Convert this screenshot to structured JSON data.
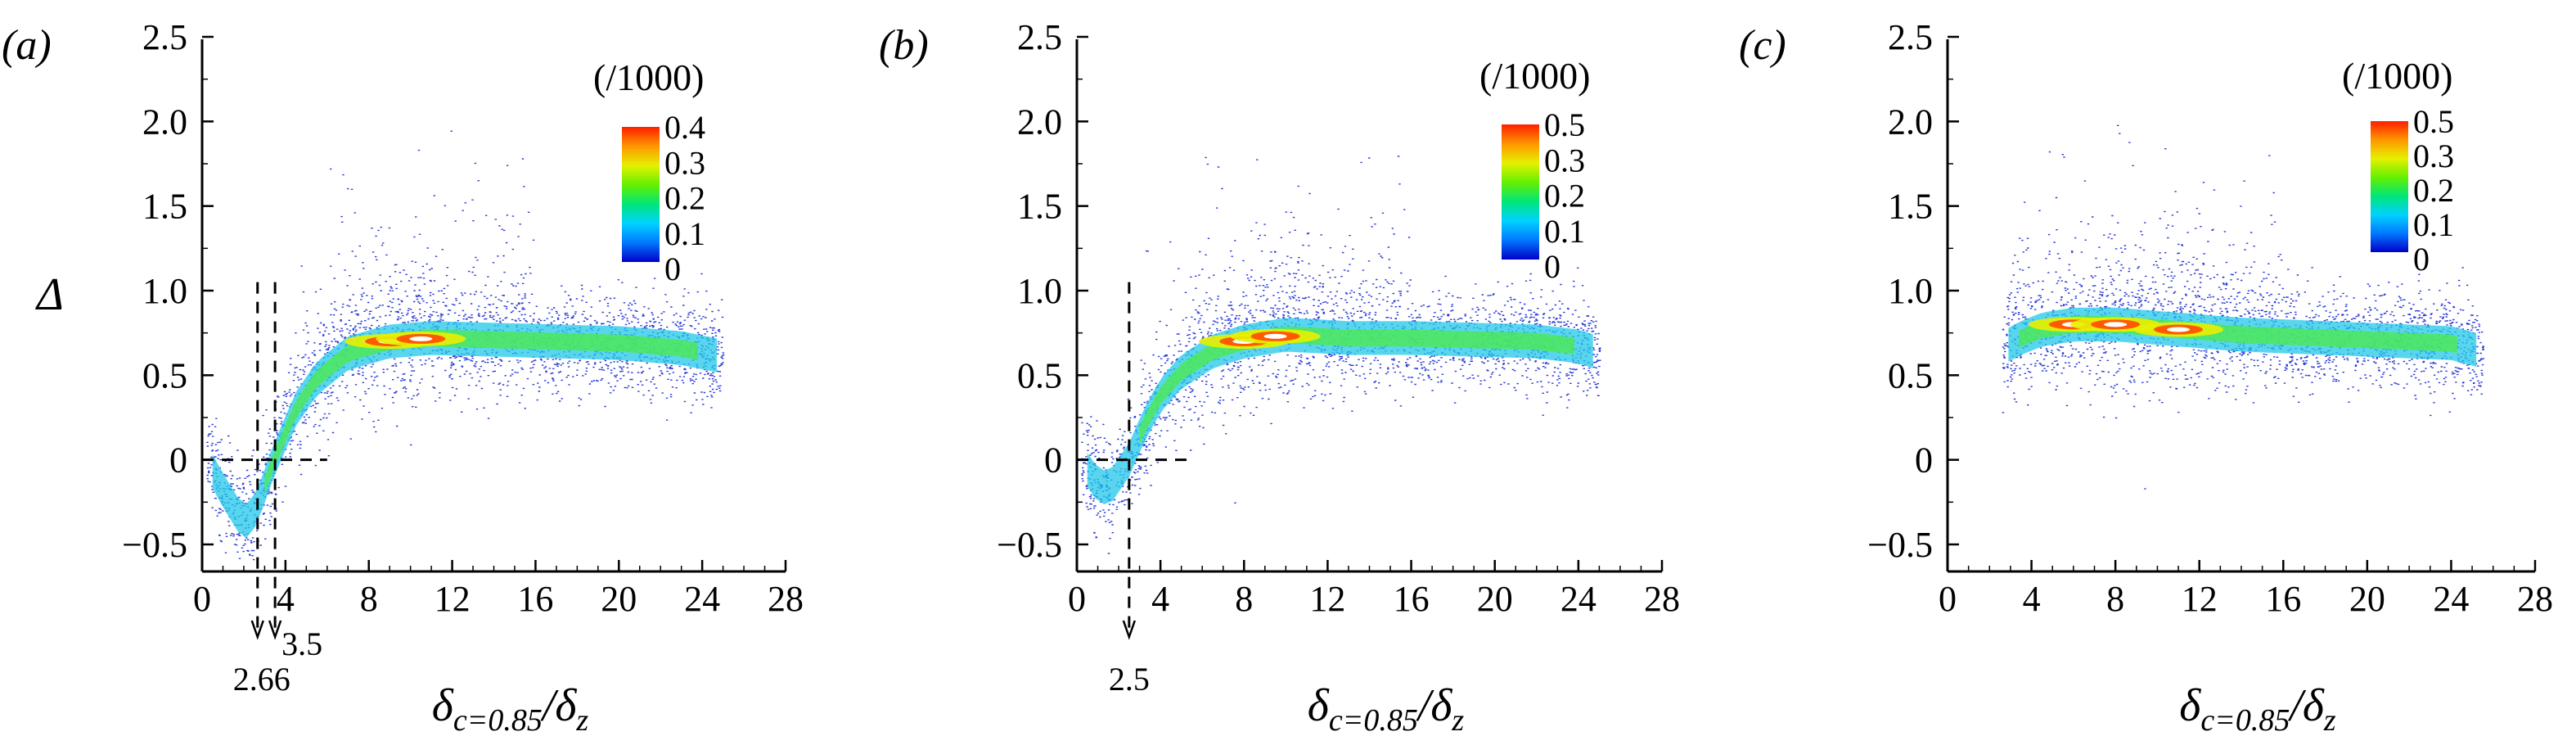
{
  "chart_data": [
    {
      "type": "heatmap",
      "panel_label": "(a)",
      "xlabel": "δc=0.85/δz",
      "xlabel_main": "δ",
      "xlabel_sub": "c=0.85",
      "xlabel_tail": "/δ",
      "xlabel_sub2": "z",
      "ylabel": "Δ",
      "xlim": [
        0,
        28
      ],
      "ylim": [
        -0.6,
        2.5
      ],
      "x_ticks": [
        0,
        4,
        8,
        12,
        16,
        20,
        24,
        28
      ],
      "x_tick_labels": [
        "0",
        "4",
        "8",
        "12",
        "16",
        "20",
        "24",
        "28"
      ],
      "y_ticks": [
        -0.5,
        0,
        0.5,
        1.0,
        1.5,
        2.0,
        2.5
      ],
      "y_tick_labels": [
        "−0.5",
        "0",
        "0.5",
        "1.0",
        "1.5",
        "2.0",
        "2.5"
      ],
      "colorbar_title": "(/1000)",
      "colorbar_ticks": [
        "0.4",
        "0.3",
        "0.2",
        "0.1",
        "0"
      ],
      "colorbar_max": 0.4,
      "ridge": {
        "x": [
          0.2,
          1,
          2,
          2.66,
          3.2,
          3.8,
          4.5,
          5.5,
          7,
          9,
          11,
          14,
          17,
          20,
          23,
          25
        ],
        "y": [
          0,
          -0.18,
          -0.38,
          -0.28,
          -0.08,
          0.1,
          0.3,
          0.48,
          0.63,
          0.7,
          0.72,
          0.71,
          0.7,
          0.69,
          0.66,
          0.61
        ]
      },
      "hot_spots": [
        9,
        10.5
      ],
      "vlines": [
        2.66,
        3.5
      ],
      "vline_labels": [
        "2.66",
        "3.5"
      ],
      "hline_y": 0,
      "hline_x_end": 6,
      "vline_y_top": 1.05
    },
    {
      "type": "heatmap",
      "panel_label": "(b)",
      "xlabel": "δc=0.85/δz",
      "xlabel_main": "δ",
      "xlabel_sub": "c=0.85",
      "xlabel_tail": "/δ",
      "xlabel_sub2": "z",
      "xlim": [
        0,
        28
      ],
      "ylim": [
        -0.6,
        2.5
      ],
      "x_ticks": [
        0,
        4,
        8,
        12,
        16,
        20,
        24,
        28
      ],
      "x_tick_labels": [
        "0",
        "4",
        "8",
        "12",
        "16",
        "20",
        "24",
        "28"
      ],
      "y_ticks": [
        -0.5,
        0,
        0.5,
        1.0,
        1.5,
        2.0,
        2.5
      ],
      "y_tick_labels": [
        "−0.5",
        "0",
        "0.5",
        "1.0",
        "1.5",
        "2.0",
        "2.5"
      ],
      "colorbar_title": "(/1000)",
      "colorbar_ticks": [
        "0.5",
        "0.3",
        "0.2",
        "0.1",
        "0"
      ],
      "colorbar_max": 0.5,
      "ridge": {
        "x": [
          0.2,
          0.8,
          1.5,
          2.5,
          3.2,
          4,
          5,
          6.5,
          8,
          10,
          13,
          16,
          19,
          22,
          24,
          25
        ],
        "y": [
          0,
          -0.12,
          -0.18,
          0,
          0.2,
          0.38,
          0.52,
          0.64,
          0.7,
          0.74,
          0.72,
          0.72,
          0.71,
          0.7,
          0.67,
          0.63
        ]
      },
      "hot_spots": [
        8,
        9.5
      ],
      "vlines": [
        2.5
      ],
      "vline_labels": [
        "2.5"
      ],
      "hline_y": 0,
      "hline_x_end": 5.5,
      "vline_y_top": 1.05
    },
    {
      "type": "heatmap",
      "panel_label": "(c)",
      "xlabel": "δc=0.85/δz",
      "xlabel_main": "δ",
      "xlabel_sub": "c=0.85",
      "xlabel_tail": "/δ",
      "xlabel_sub2": "z",
      "xlim": [
        0,
        28
      ],
      "ylim": [
        -0.6,
        2.5
      ],
      "x_ticks": [
        0,
        4,
        8,
        12,
        16,
        20,
        24,
        28
      ],
      "x_tick_labels": [
        "0",
        "4",
        "8",
        "12",
        "16",
        "20",
        "24",
        "28"
      ],
      "y_ticks": [
        -0.5,
        0,
        0.5,
        1.0,
        1.5,
        2.0,
        2.5
      ],
      "y_tick_labels": [
        "−0.5",
        "0",
        "0.5",
        "1.0",
        "1.5",
        "2.0",
        "2.5"
      ],
      "colorbar_title": "(/1000)",
      "colorbar_ticks": [
        "0.5",
        "0.3",
        "0.2",
        "0.1",
        "0"
      ],
      "colorbar_max": 0.5,
      "ridge": {
        "x": [
          2.6,
          3.5,
          4.5,
          6,
          8,
          10,
          12,
          14,
          16,
          18,
          20,
          22,
          24,
          25.5
        ],
        "y": [
          0.66,
          0.72,
          0.77,
          0.8,
          0.8,
          0.78,
          0.76,
          0.74,
          0.73,
          0.72,
          0.71,
          0.7,
          0.69,
          0.64
        ]
      },
      "hot_spots": [
        6,
        8,
        11
      ],
      "vlines": [],
      "vline_labels": [],
      "hline_y": null,
      "hline_x_end": null,
      "vline_y_top": null
    }
  ],
  "colors": {
    "colormap": [
      "#0000c8",
      "#0078ff",
      "#00d2ff",
      "#00e678",
      "#64f000",
      "#e6f000",
      "#ff9600",
      "#ff1e00"
    ],
    "axis": "#000000",
    "scatter": "#2a3bd6"
  }
}
